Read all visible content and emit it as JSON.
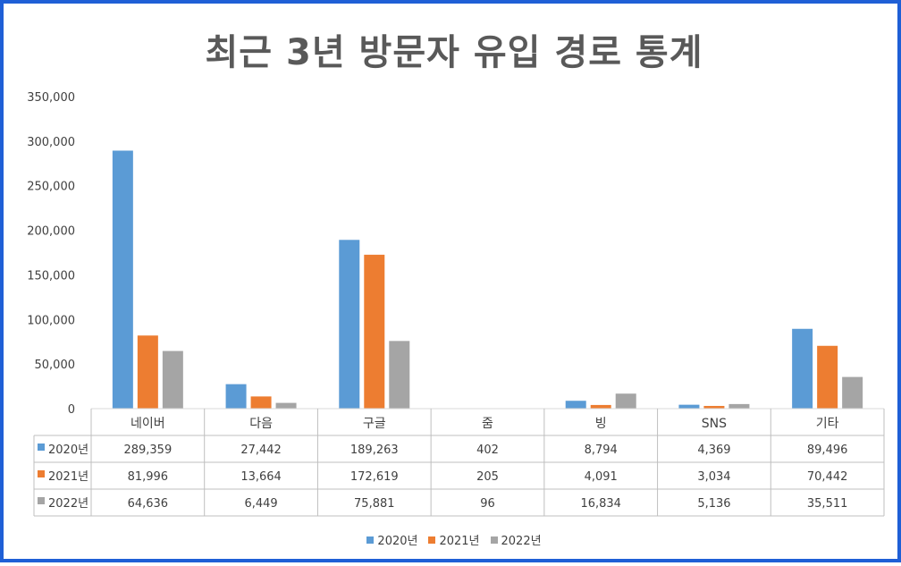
{
  "chart_data": {
    "type": "bar",
    "title": "최근 3년 방문자 유입 경로 통계",
    "categories": [
      "네이버",
      "다음",
      "구글",
      "줌",
      "빙",
      "SNS",
      "기타"
    ],
    "series": [
      {
        "name": "2020년",
        "color": "#5b9bd5",
        "values": [
          289359,
          27442,
          189263,
          402,
          8794,
          4369,
          89496
        ],
        "labels": [
          "289,359",
          "27,442",
          "189,263",
          "402",
          "8,794",
          "4,369",
          "89,496"
        ]
      },
      {
        "name": "2021년",
        "color": "#ed7d31",
        "values": [
          81996,
          13664,
          172619,
          205,
          4091,
          3034,
          70442
        ],
        "labels": [
          "81,996",
          "13,664",
          "172,619",
          "205",
          "4,091",
          "3,034",
          "70,442"
        ]
      },
      {
        "name": "2022년",
        "color": "#a5a5a5",
        "values": [
          64636,
          6449,
          75881,
          96,
          16834,
          5136,
          35511
        ],
        "labels": [
          "64,636",
          "6,449",
          "75,881",
          "96",
          "16,834",
          "5,136",
          "35,511"
        ]
      }
    ],
    "ylim": [
      0,
      350000
    ],
    "yticks": [
      0,
      50000,
      100000,
      150000,
      200000,
      250000,
      300000,
      350000
    ],
    "ytick_labels": [
      "0",
      "50,000",
      "100,000",
      "150,000",
      "200,000",
      "250,000",
      "300,000",
      "350,000"
    ],
    "data_table": true,
    "legend_position": "bottom",
    "grid": false
  }
}
